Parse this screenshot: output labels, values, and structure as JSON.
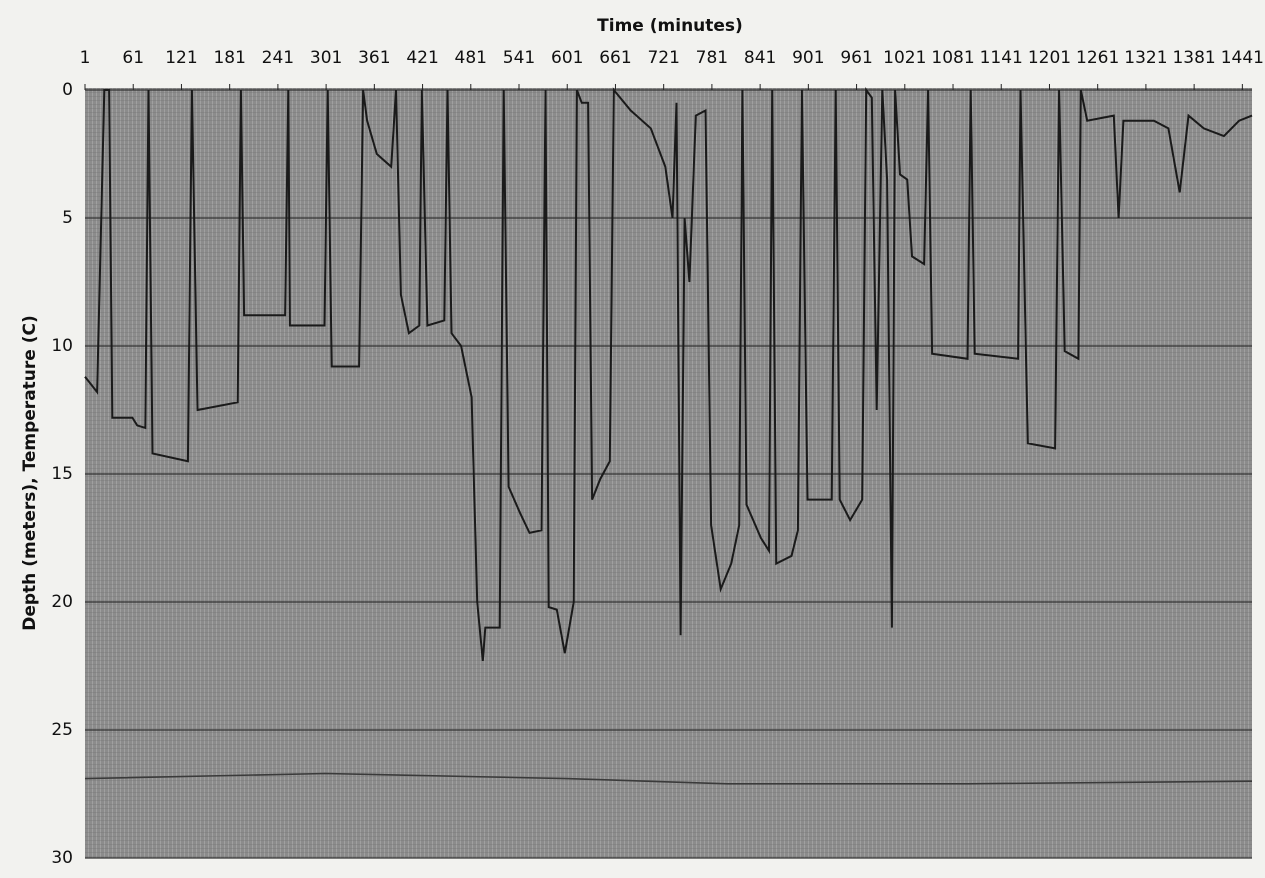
{
  "chart_data": {
    "type": "line",
    "title": "Time (minutes)",
    "y_label": "Depth (meters), Temperature (C)",
    "xlim": [
      1,
      1453
    ],
    "ylim": [
      0,
      30
    ],
    "y_inverted": true,
    "grid": true,
    "xticks": [
      1,
      61,
      121,
      181,
      241,
      301,
      361,
      421,
      481,
      541,
      601,
      661,
      721,
      781,
      841,
      901,
      961,
      1021,
      1081,
      1141,
      1201,
      1261,
      1321,
      1381,
      1441
    ],
    "yticks": [
      0,
      5,
      10,
      15,
      20,
      25,
      30
    ],
    "series": [
      {
        "color": "#1a1a1a",
        "x": [
          1,
          16,
          25,
          31,
          35,
          60,
          66,
          76,
          80,
          85,
          129,
          134,
          141,
          191,
          195,
          199,
          250,
          254,
          256,
          299,
          303,
          308,
          342,
          347,
          352,
          364,
          382,
          388,
          394,
          404,
          417,
          420,
          427,
          448,
          452,
          457,
          469,
          482,
          489,
          496,
          499,
          517,
          522,
          528,
          542,
          554,
          569,
          574,
          578,
          588,
          598,
          609,
          613,
          619,
          627,
          632,
          642,
          654,
          659,
          680,
          705,
          723,
          732,
          737,
          742,
          747,
          753,
          761,
          773,
          780,
          792,
          805,
          815,
          819,
          824,
          842,
          852,
          856,
          861,
          880,
          888,
          893,
          900,
          930,
          935,
          940,
          953,
          968,
          973,
          980,
          986,
          993,
          999,
          1005,
          1009,
          1015,
          1024,
          1030,
          1045,
          1050,
          1055,
          1099,
          1103,
          1108,
          1162,
          1165,
          1174,
          1208,
          1213,
          1220,
          1237,
          1240,
          1248,
          1281,
          1287,
          1293,
          1331,
          1349,
          1363,
          1374,
          1393,
          1418,
          1437,
          1453
        ],
        "values": [
          11.2,
          11.8,
          0,
          0,
          12.8,
          12.8,
          13.1,
          13.2,
          0,
          14.2,
          14.5,
          0,
          12.5,
          12.2,
          0,
          8.8,
          8.8,
          0,
          9.2,
          9.2,
          0,
          10.8,
          10.8,
          0,
          1.2,
          2.5,
          3,
          0,
          8,
          9.5,
          9.2,
          0,
          9.2,
          9,
          0,
          9.5,
          10,
          12,
          20,
          22.3,
          21,
          21,
          0,
          15.5,
          16.5,
          17.3,
          17.2,
          0,
          20.2,
          20.3,
          22,
          20,
          0,
          0.5,
          0.5,
          16,
          15.2,
          14.5,
          0,
          0.8,
          1.5,
          3,
          5,
          0.5,
          21.3,
          5,
          7.5,
          1,
          0.8,
          17,
          19.5,
          18.5,
          17,
          0,
          16.2,
          17.5,
          18,
          0,
          18.5,
          18.2,
          17.2,
          0,
          16,
          16,
          0,
          16,
          16.8,
          16,
          0,
          0.3,
          12.5,
          0,
          3.5,
          21,
          0,
          3.3,
          3.5,
          6.5,
          6.8,
          0,
          10.3,
          10.5,
          0,
          10.3,
          10.5,
          0,
          13.8,
          14,
          0,
          10.2,
          10.5,
          0,
          1.2,
          1,
          5,
          1.2,
          1.2,
          1.5,
          4,
          1,
          1.5,
          1.8,
          1.2,
          1
        ]
      },
      {
        "color": "#3a3a3a",
        "x": [
          1,
          300,
          600,
          800,
          1100,
          1453
        ],
        "values": [
          26.9,
          26.7,
          26.9,
          27.1,
          27.1,
          27.0
        ]
      }
    ]
  }
}
